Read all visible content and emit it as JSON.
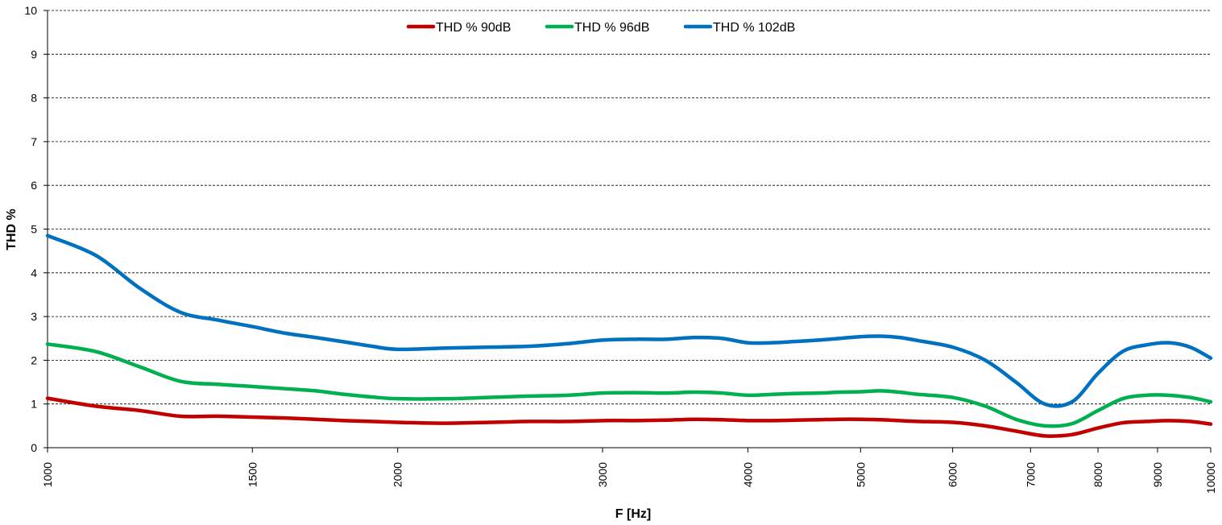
{
  "chart_data": {
    "type": "line",
    "xscale": "log",
    "xlim": [
      1000,
      10000
    ],
    "ylim": [
      0,
      10
    ],
    "xlabel": "F [Hz]",
    "ylabel": "THD %",
    "grid": "horizontal-dashed",
    "legend_position": "top-center",
    "y_ticks": [
      "0",
      "1",
      "2",
      "3",
      "4",
      "5",
      "6",
      "7",
      "8",
      "9",
      "10"
    ],
    "x_ticks": [
      {
        "value": 1000,
        "label": "1000"
      },
      {
        "value": 1500,
        "label": "1500"
      },
      {
        "value": 2000,
        "label": "2000"
      },
      {
        "value": 3000,
        "label": "3000"
      },
      {
        "value": 4000,
        "label": "4000"
      },
      {
        "value": 5000,
        "label": "5000"
      },
      {
        "value": 6000,
        "label": "6000"
      },
      {
        "value": 7000,
        "label": "7000"
      },
      {
        "value": 8000,
        "label": "8000"
      },
      {
        "value": 9000,
        "label": "9000"
      },
      {
        "value": 10000,
        "label": "10000"
      }
    ],
    "x": [
      1000,
      1100,
      1200,
      1300,
      1400,
      1500,
      1600,
      1700,
      1800,
      1900,
      2000,
      2200,
      2400,
      2600,
      2800,
      3000,
      3200,
      3400,
      3600,
      3800,
      4000,
      4200,
      4400,
      4600,
      4800,
      5000,
      5200,
      5400,
      5600,
      6000,
      6400,
      6800,
      7200,
      7600,
      8000,
      8400,
      8800,
      9200,
      9600,
      10000
    ],
    "series": [
      {
        "name": "THD % 90dB",
        "color": "#c00000",
        "values": [
          1.13,
          0.95,
          0.85,
          0.72,
          0.72,
          0.7,
          0.68,
          0.65,
          0.62,
          0.6,
          0.58,
          0.56,
          0.58,
          0.6,
          0.6,
          0.62,
          0.62,
          0.63,
          0.65,
          0.64,
          0.62,
          0.62,
          0.63,
          0.64,
          0.65,
          0.65,
          0.64,
          0.62,
          0.6,
          0.58,
          0.5,
          0.38,
          0.27,
          0.3,
          0.45,
          0.57,
          0.6,
          0.62,
          0.6,
          0.54
        ]
      },
      {
        "name": "THD % 96dB",
        "color": "#00b050",
        "values": [
          2.37,
          2.2,
          1.85,
          1.52,
          1.45,
          1.4,
          1.35,
          1.3,
          1.22,
          1.16,
          1.12,
          1.12,
          1.15,
          1.18,
          1.2,
          1.25,
          1.26,
          1.25,
          1.27,
          1.25,
          1.2,
          1.22,
          1.24,
          1.25,
          1.27,
          1.28,
          1.3,
          1.27,
          1.22,
          1.15,
          0.95,
          0.65,
          0.5,
          0.55,
          0.85,
          1.12,
          1.2,
          1.2,
          1.15,
          1.05
        ]
      },
      {
        "name": "THD % 102dB",
        "color": "#0070c0",
        "values": [
          4.85,
          4.4,
          3.65,
          3.1,
          2.92,
          2.77,
          2.62,
          2.52,
          2.42,
          2.32,
          2.25,
          2.28,
          2.3,
          2.32,
          2.38,
          2.46,
          2.48,
          2.48,
          2.52,
          2.5,
          2.4,
          2.4,
          2.43,
          2.46,
          2.5,
          2.54,
          2.55,
          2.52,
          2.45,
          2.3,
          2.0,
          1.5,
          1.0,
          1.05,
          1.7,
          2.2,
          2.35,
          2.4,
          2.3,
          2.05
        ]
      }
    ]
  }
}
